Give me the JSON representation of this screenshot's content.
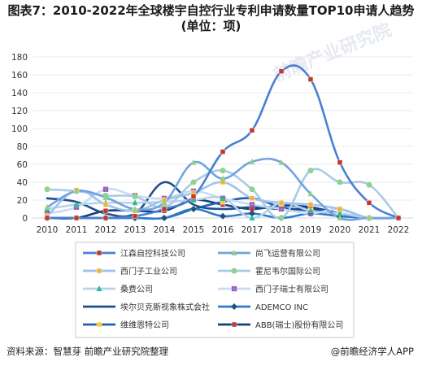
{
  "title": "图表7：2010-2022年全球楼宇自控行业专利申请数量TOP10申请人趋势(单位：项)",
  "source": "资料来源：智慧芽 前瞻产业研究院整理",
  "brand": "@前瞻经济学人APP",
  "watermark": "前瞻产业研究院",
  "chart_data": {
    "type": "line",
    "smooth": true,
    "title": "图表7：2010-2022年全球楼宇自控行业专利申请数量TOP10申请人趋势(单位：项)",
    "xlabel": "",
    "ylabel": "",
    "x": [
      "2010",
      "2011",
      "2012",
      "2013",
      "2014",
      "2015",
      "2016",
      "2017",
      "2018",
      "2019",
      "2020",
      "2021",
      "2022"
    ],
    "ylim": [
      0,
      180
    ],
    "yticks": [
      0,
      20,
      40,
      60,
      80,
      100,
      120,
      140,
      160,
      180
    ],
    "grid": true,
    "legend": "bottom",
    "series": [
      {
        "name": "江森自控科技公司",
        "color": "#4a7fd4",
        "marker": "square",
        "marker_color": "#c0392b",
        "values": [
          0,
          0,
          0,
          2,
          10,
          24,
          74,
          98,
          164,
          155,
          62,
          17,
          0
        ]
      },
      {
        "name": "尚飞运营有限公司",
        "color": "#73a2e0",
        "marker": "triangle",
        "marker_color": "#8fd08a",
        "values": [
          12,
          30,
          23,
          10,
          17,
          62,
          44,
          63,
          62,
          27,
          0,
          0,
          0
        ]
      },
      {
        "name": "西门子工业公司",
        "color": "#9cc3ec",
        "marker": "square",
        "marker_color": "#f2b130",
        "values": [
          2,
          31,
          15,
          8,
          20,
          28,
          40,
          22,
          17,
          15,
          10,
          0,
          0
        ]
      },
      {
        "name": "霍尼韦尔国际公司",
        "color": "#a9cbe3",
        "marker": "circle",
        "marker_color": "#8ed48a",
        "values": [
          32,
          30,
          25,
          24,
          12,
          40,
          53,
          32,
          0,
          53,
          40,
          37,
          0
        ]
      },
      {
        "name": "桑费公司",
        "color": "#b5d3ee",
        "marker": "triangle",
        "marker_color": "#2fb99a",
        "values": [
          10,
          15,
          17,
          17,
          18,
          20,
          22,
          0,
          17,
          8,
          5,
          0,
          0
        ]
      },
      {
        "name": "西门子瑞士有限公司",
        "color": "#c7dcf3",
        "marker": "plus",
        "marker_color": "#9455b8",
        "values": [
          5,
          12,
          32,
          25,
          22,
          30,
          22,
          15,
          10,
          5,
          10,
          0,
          0
        ]
      },
      {
        "name": "埃尔贝克斯视象株式会社",
        "color": "#1e4f8c",
        "marker": "none",
        "marker_color": "#1e4f8c",
        "values": [
          22,
          18,
          5,
          5,
          40,
          15,
          10,
          12,
          10,
          10,
          5,
          0,
          0
        ]
      },
      {
        "name": "ADEMCO INC",
        "color": "#2e7cc8",
        "marker": "diamond",
        "marker_color": "#1e4f8c",
        "values": [
          0,
          0,
          0,
          0,
          0,
          10,
          2,
          5,
          0,
          5,
          2,
          0,
          0
        ]
      },
      {
        "name": "维维恩特公司",
        "color": "#1f5fb5",
        "marker": "square",
        "marker_color": "#f7d51e",
        "values": [
          0,
          0,
          0,
          0,
          0,
          10,
          18,
          22,
          12,
          8,
          5,
          0,
          0
        ]
      },
      {
        "name": "ABB(瑞士)股份有限公司",
        "color": "#153f7a",
        "marker": "square",
        "marker_color": "#c0392b",
        "values": [
          0,
          0,
          8,
          8,
          8,
          20,
          15,
          10,
          14,
          12,
          5,
          0,
          0
        ]
      }
    ]
  }
}
